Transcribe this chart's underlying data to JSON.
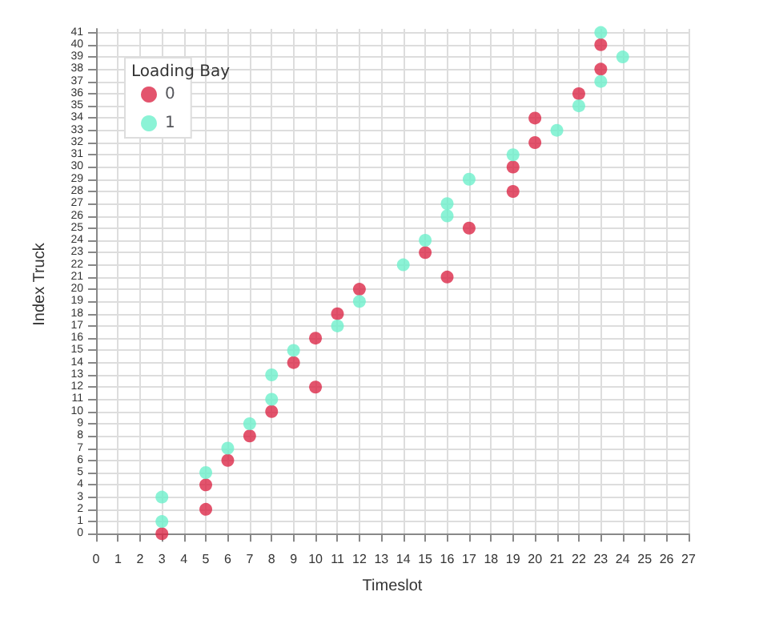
{
  "chart_data": {
    "type": "scatter",
    "xlabel": "Timeslot",
    "ylabel": "Index Truck",
    "legend_title": "Loading Bay",
    "legend": "top left",
    "grid": true,
    "marker": "circle",
    "xlim": [
      0,
      27
    ],
    "xticks": [
      0,
      1,
      2,
      3,
      4,
      5,
      6,
      7,
      8,
      9,
      10,
      11,
      12,
      13,
      14,
      15,
      16,
      17,
      18,
      19,
      20,
      21,
      22,
      23,
      24,
      25,
      26,
      27
    ],
    "ylim": [
      -0.5,
      41.3
    ],
    "yticks": [
      0,
      1,
      2,
      3,
      4,
      5,
      6,
      7,
      8,
      9,
      10,
      11,
      12,
      13,
      14,
      15,
      16,
      17,
      18,
      19,
      20,
      21,
      22,
      23,
      24,
      25,
      26,
      27,
      28,
      29,
      30,
      31,
      32,
      33,
      34,
      35,
      36,
      37,
      38,
      39,
      40,
      41
    ],
    "series": [
      {
        "name": "0",
        "color": "#dc2949",
        "x": [
          3,
          5,
          5,
          6,
          7,
          8,
          10,
          9,
          10,
          11,
          12,
          16,
          15,
          17,
          19,
          19,
          20,
          20,
          22,
          23,
          23
        ],
        "values": [
          0,
          2,
          4,
          6,
          8,
          10,
          12,
          14,
          16,
          18,
          20,
          21,
          23,
          25,
          28,
          30,
          32,
          34,
          36,
          38,
          40
        ]
      },
      {
        "name": "1",
        "color": "#6ef0cc",
        "x": [
          3,
          3,
          5,
          6,
          7,
          8,
          8,
          9,
          11,
          12,
          14,
          15,
          16,
          16,
          17,
          19,
          21,
          22,
          23,
          24,
          23
        ],
        "values": [
          1,
          3,
          5,
          7,
          9,
          11,
          13,
          15,
          17,
          19,
          22,
          24,
          26,
          27,
          29,
          31,
          33,
          35,
          37,
          39,
          41
        ]
      }
    ]
  }
}
